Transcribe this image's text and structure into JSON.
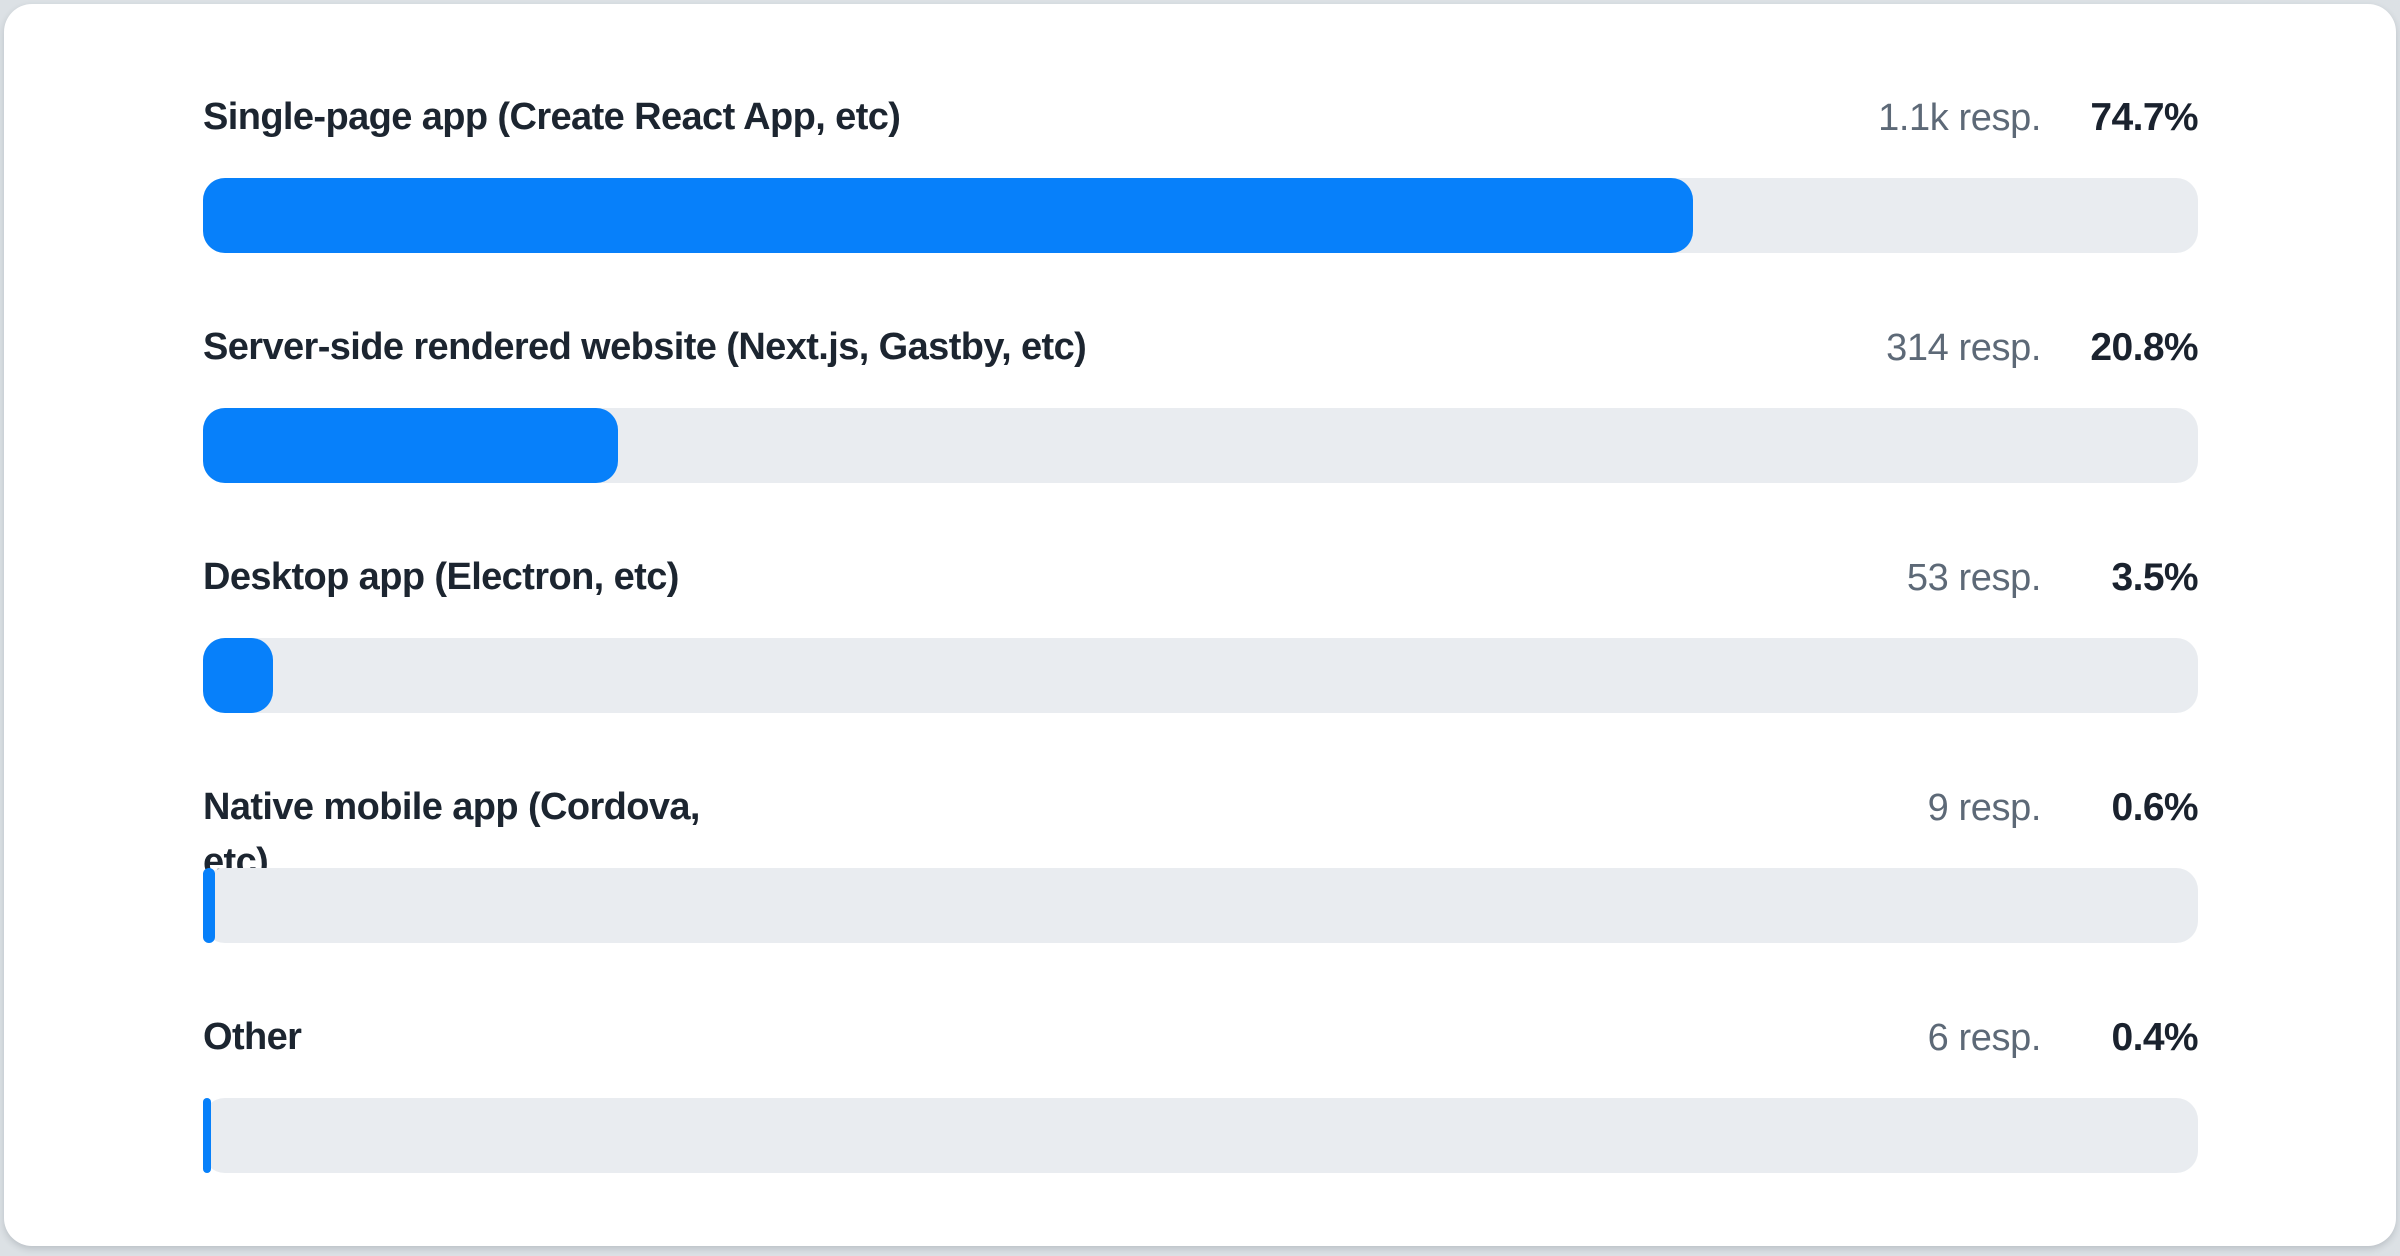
{
  "chart_data": {
    "type": "bar",
    "orientation": "horizontal",
    "title": "",
    "xlabel": "",
    "ylabel": "",
    "xlim": [
      0,
      100
    ],
    "grid": false,
    "categories": [
      "Single-page app (Create React App, etc)",
      "Server-side rendered website (Next.js, Gastby, etc)",
      "Desktop app (Electron, etc)",
      "Native mobile app (Cordova, etc)",
      "Other"
    ],
    "values": [
      74.7,
      20.8,
      3.5,
      0.6,
      0.4
    ],
    "percent_labels": [
      "74.7%",
      "20.8%",
      "3.5%",
      "0.6%",
      "0.4%"
    ],
    "responses": [
      "1.1k resp.",
      "314 resp.",
      "53 resp.",
      "9 resp.",
      "6 resp."
    ]
  },
  "colors": {
    "bar_fill": "#0780fa",
    "bar_track": "#e9ecf0",
    "label_text": "#1c2530",
    "response_text": "#5d6977",
    "percent_text": "#1a222e",
    "card_background": "#ffffff",
    "page_background": "#dce1e5"
  }
}
